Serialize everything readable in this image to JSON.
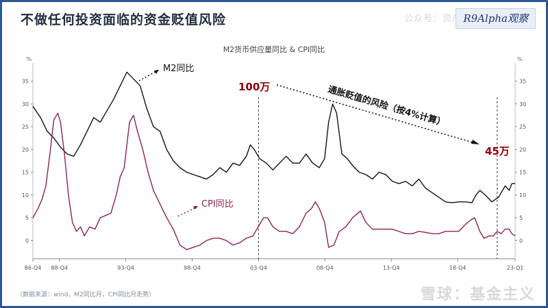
{
  "slide": {
    "title": "不做任何投资面临的资金贬值风险",
    "logo_text": "R9Alpha观察",
    "watermark_top": "公众号：资产配",
    "source_note": "（数据来源：wind，M2同比月，CPI同比月走势）",
    "watermark_bottom": "雪球：基金主义"
  },
  "colors": {
    "m2": "#111111",
    "cpi": "#8b2252",
    "annotation_red": "#8b0000",
    "frame": "#2f5597"
  },
  "chart_data": {
    "type": "line",
    "title": "M2货币供应量同比 & CPI同比",
    "ylabel_left": "%",
    "ylabel_right": "%",
    "ylim": [
      -4,
      39
    ],
    "yticks": [
      0,
      5,
      10,
      15,
      20,
      25,
      30,
      35
    ],
    "x_range": [
      1986.92,
      2023.25
    ],
    "xticks": [
      {
        "label": "86-Q4",
        "x": 1986.92
      },
      {
        "label": "88-Q4",
        "x": 1988.92
      },
      {
        "label": "93-Q4",
        "x": 1993.92
      },
      {
        "label": "98-Q4",
        "x": 1998.92
      },
      {
        "label": "03-Q4",
        "x": 2003.92
      },
      {
        "label": "08-Q4",
        "x": 2008.92
      },
      {
        "label": "13-Q4",
        "x": 2013.92
      },
      {
        "label": "18-Q4",
        "x": 2018.92
      },
      {
        "label": "23-Q1",
        "x": 2023.25
      }
    ],
    "series": [
      {
        "name": "M2同比",
        "color": "#111111",
        "x": [
          1986.92,
          1987.5,
          1988.0,
          1988.5,
          1989.0,
          1989.5,
          1990.0,
          1990.5,
          1991.0,
          1991.5,
          1992.0,
          1992.5,
          1993.0,
          1993.5,
          1994.0,
          1994.5,
          1995.0,
          1995.5,
          1996.0,
          1996.5,
          1997.0,
          1997.5,
          1998.0,
          1998.5,
          1999.0,
          1999.5,
          2000.0,
          2000.5,
          2001.0,
          2001.5,
          2002.0,
          2002.5,
          2003.0,
          2003.3,
          2003.6,
          2004.0,
          2004.5,
          2005.0,
          2005.5,
          2006.0,
          2006.5,
          2007.0,
          2007.5,
          2008.0,
          2008.5,
          2008.9,
          2009.2,
          2009.5,
          2009.8,
          2010.2,
          2010.6,
          2011.0,
          2011.5,
          2012.0,
          2012.5,
          2013.0,
          2013.5,
          2014.0,
          2014.5,
          2015.0,
          2015.5,
          2016.0,
          2016.5,
          2017.0,
          2017.5,
          2018.0,
          2018.5,
          2019.0,
          2019.5,
          2020.0,
          2020.3,
          2020.6,
          2021.0,
          2021.5,
          2022.0,
          2022.5,
          2022.8,
          2023.0,
          2023.25
        ],
        "y": [
          29.5,
          27,
          24,
          22.5,
          20.5,
          19,
          18.5,
          21,
          24,
          27,
          26,
          28.5,
          31,
          34,
          37,
          35.5,
          34,
          29,
          25,
          24,
          20,
          17.5,
          16,
          15,
          14.5,
          14,
          13.5,
          14.5,
          16,
          15,
          17,
          16.5,
          18.5,
          21,
          20,
          18,
          17,
          15.5,
          17,
          18.5,
          17,
          17,
          19,
          17,
          16,
          18,
          26,
          30,
          28,
          19,
          18,
          16.5,
          15,
          14.5,
          13.5,
          15,
          14.5,
          13,
          12.5,
          13,
          12,
          13.5,
          11.5,
          10.5,
          9.5,
          8.5,
          8.3,
          8.5,
          8.5,
          8.3,
          10,
          11,
          10,
          8.5,
          9.5,
          12,
          11,
          12.5,
          12.5
        ]
      },
      {
        "name": "CPI同比",
        "color": "#8b2252",
        "x": [
          1986.92,
          1987.3,
          1987.6,
          1987.9,
          1988.2,
          1988.5,
          1988.8,
          1989.0,
          1989.3,
          1989.6,
          1989.9,
          1990.2,
          1990.5,
          1990.8,
          1991.2,
          1991.6,
          1992.0,
          1992.4,
          1992.8,
          1993.2,
          1993.5,
          1993.8,
          1994.0,
          1994.2,
          1994.5,
          1994.8,
          1995.2,
          1995.6,
          1996.0,
          1996.5,
          1997.0,
          1997.5,
          1998.0,
          1998.5,
          1999.0,
          1999.5,
          2000.0,
          2000.5,
          2001.0,
          2001.5,
          2002.0,
          2002.5,
          2003.0,
          2003.5,
          2003.9,
          2004.3,
          2004.6,
          2005.0,
          2005.5,
          2006.0,
          2006.5,
          2007.0,
          2007.5,
          2007.9,
          2008.2,
          2008.5,
          2008.9,
          2009.2,
          2009.6,
          2010.0,
          2010.5,
          2011.0,
          2011.6,
          2012.0,
          2012.5,
          2013.0,
          2013.5,
          2014.0,
          2014.5,
          2015.0,
          2015.5,
          2016.0,
          2016.5,
          2017.0,
          2017.5,
          2018.0,
          2018.5,
          2019.0,
          2019.5,
          2019.9,
          2020.2,
          2020.6,
          2020.9,
          2021.3,
          2021.6,
          2021.9,
          2022.2,
          2022.5,
          2022.8,
          2023.0,
          2023.25
        ],
        "y": [
          5,
          7,
          9,
          12,
          19,
          26.5,
          28,
          26,
          19,
          10,
          4,
          2,
          3,
          1,
          3,
          2.5,
          5,
          5.5,
          6,
          10,
          14,
          16,
          21,
          26,
          27.5,
          24,
          20,
          15,
          11,
          8,
          5,
          2.5,
          -1,
          -2,
          -1.5,
          -1,
          0,
          0.5,
          0.5,
          0,
          -1,
          -0.5,
          0.5,
          1,
          3,
          5,
          5,
          3,
          2,
          2,
          1.5,
          3,
          6,
          7,
          8.5,
          7,
          4,
          -1.5,
          -1,
          2,
          3,
          5,
          6.5,
          4,
          2.5,
          2.5,
          2.5,
          2.5,
          2,
          1.5,
          1.5,
          2,
          1.8,
          1.5,
          1.5,
          2,
          2,
          2,
          3.5,
          4.5,
          5,
          2,
          0.5,
          1,
          1,
          2,
          1.5,
          2.5,
          2.5,
          1.5,
          1
        ]
      }
    ],
    "reference_lines": [
      {
        "x": 2003.92
      },
      {
        "x": 2021.9
      }
    ],
    "annotations": {
      "m2_label": "M2同比",
      "cpi_label": "CPI同比",
      "start_value": "100万",
      "end_value": "45万",
      "risk_label": "通胀贬值的风险（按4%计算）"
    }
  }
}
